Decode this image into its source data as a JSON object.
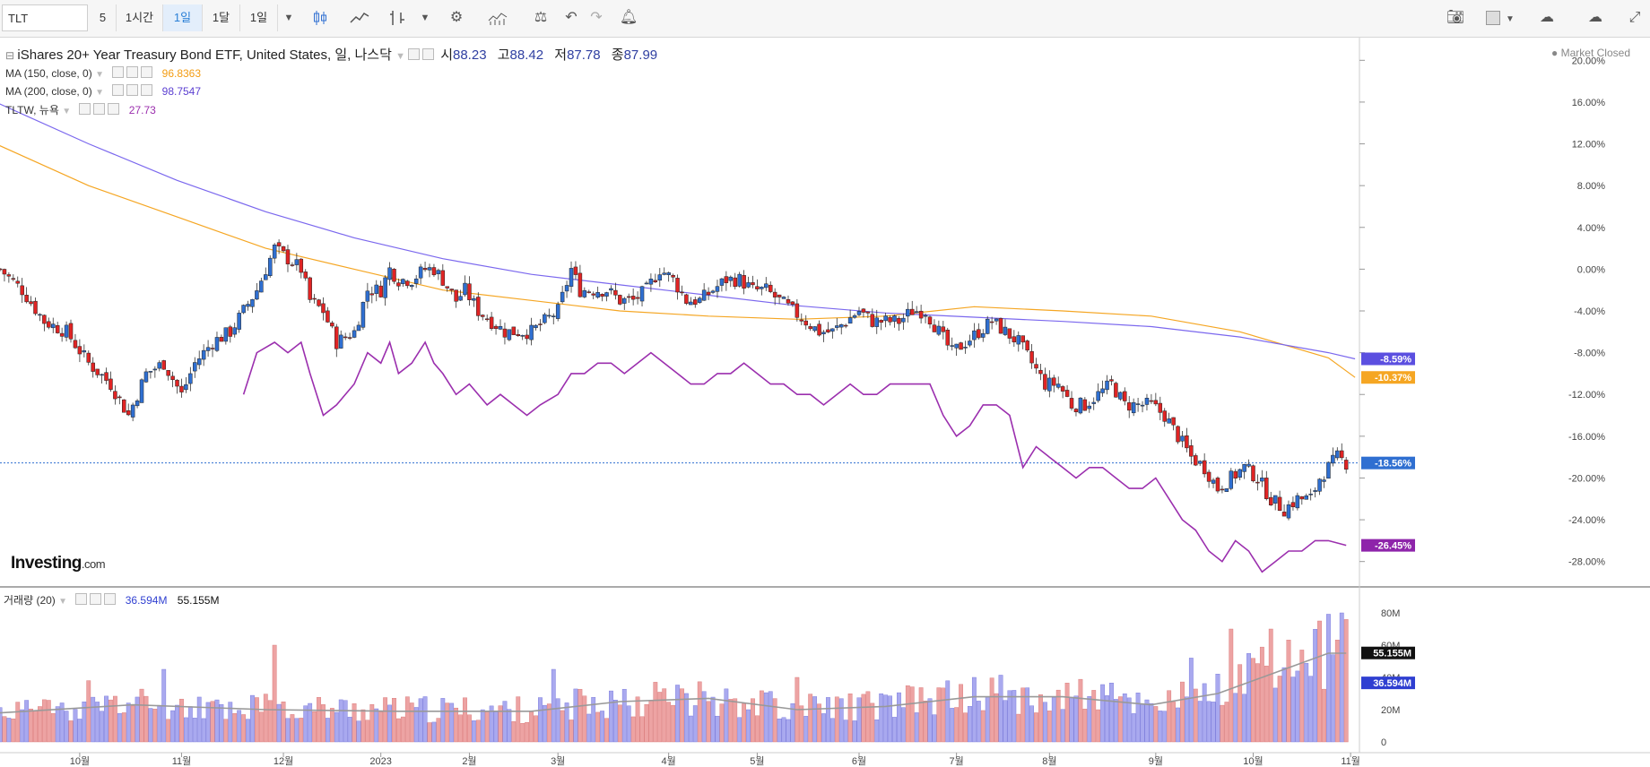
{
  "toolbar": {
    "symbol": "TLT",
    "intervals": [
      "5",
      "1시간",
      "1일",
      "1달",
      "1일"
    ],
    "active_interval": 2,
    "icons": [
      "candle-chart-icon",
      "line-chart-icon",
      "bar-chart-icon",
      "dropdown-icon",
      "settings-gear-icon",
      "indicators-icon",
      "compare-scale-icon",
      "undo-icon",
      "redo-icon",
      "alert-bell-icon",
      "camera-icon",
      "color-box-icon",
      "dropdown-icon",
      "cloud-download-icon",
      "cloud-upload-icon",
      "fullscreen-icon"
    ]
  },
  "header": {
    "title": "iShares 20+ Year Treasury Bond ETF, United States, 일, 나스닥",
    "open_label": "시",
    "open": "88.23",
    "high_label": "고",
    "high": "88.42",
    "low_label": "저",
    "low": "87.78",
    "close_label": "종",
    "close": "87.99",
    "status": "● Market Closed"
  },
  "legends": [
    {
      "label": "MA (150, close, 0)",
      "value": "96.8363",
      "color": "#f5a623"
    },
    {
      "label": "MA (200, close, 0)",
      "value": "98.7547",
      "color": "#7b4fe0"
    },
    {
      "label": "TLTW, 뉴욕",
      "value": "27.73",
      "color": "#9b2fae"
    }
  ],
  "volume_legend": {
    "label": "거래량 (20)",
    "value1": "36.594M",
    "value2": "55.155M"
  },
  "logo": {
    "main": "Investing",
    "suffix": ".com"
  },
  "colors": {
    "up": "#2f6fd1",
    "down": "#e02424",
    "ma150": "#f5a623",
    "ma200": "#7b68ee",
    "tltw": "#9b2fae",
    "vol_up": "#a9a9ef",
    "vol_down": "#eda3a3",
    "vol_ma": "#999999",
    "grid": "#e6e6e6"
  },
  "chart_data": {
    "type": "candlestick",
    "y_axis": {
      "unit": "%",
      "min": -30,
      "max": 22,
      "ticks": [
        "20.00%",
        "16.00%",
        "12.00%",
        "8.00%",
        "4.00%",
        "0.00%",
        "-4.00%",
        "-8.00%",
        "-12.00%",
        "-16.00%",
        "-20.00%",
        "-24.00%",
        "-28.00%"
      ],
      "tick_values": [
        20,
        16,
        12,
        8,
        4,
        0,
        -4,
        -8,
        -12,
        -16,
        -20,
        -24,
        -28
      ]
    },
    "x_axis": {
      "labels": [
        "10월",
        "11월",
        "12월",
        "2023",
        "2월",
        "3월",
        "4월",
        "5월",
        "6월",
        "7월",
        "8월",
        "9월",
        "10월",
        "11월"
      ],
      "label_days": [
        18,
        41,
        64,
        86,
        106,
        126,
        151,
        171,
        194,
        216,
        237,
        261,
        283,
        305
      ]
    },
    "price_path": [
      [
        0,
        0
      ],
      [
        5,
        -2
      ],
      [
        10,
        -5
      ],
      [
        15,
        -6
      ],
      [
        20,
        -9
      ],
      [
        25,
        -11
      ],
      [
        29,
        -14
      ],
      [
        33,
        -10
      ],
      [
        37,
        -9
      ],
      [
        41,
        -12
      ],
      [
        44,
        -9
      ],
      [
        48,
        -7
      ],
      [
        52,
        -6
      ],
      [
        55,
        -4
      ],
      [
        58,
        -2
      ],
      [
        62,
        2
      ],
      [
        65,
        1
      ],
      [
        68,
        0
      ],
      [
        70,
        -3
      ],
      [
        73,
        -4
      ],
      [
        76,
        -7
      ],
      [
        80,
        -6
      ],
      [
        83,
        -2
      ],
      [
        86,
        -2
      ],
      [
        88,
        0
      ],
      [
        90,
        -1
      ],
      [
        93,
        -1
      ],
      [
        96,
        0
      ],
      [
        98,
        0
      ],
      [
        100,
        -1
      ],
      [
        103,
        -3
      ],
      [
        105,
        -2
      ],
      [
        108,
        -4
      ],
      [
        111,
        -5
      ],
      [
        114,
        -6
      ],
      [
        117,
        -6
      ],
      [
        120,
        -6
      ],
      [
        123,
        -5
      ],
      [
        126,
        -4
      ],
      [
        129,
        0
      ],
      [
        131,
        -2
      ],
      [
        134,
        -2
      ],
      [
        137,
        -2
      ],
      [
        140,
        -3
      ],
      [
        143,
        -3
      ],
      [
        146,
        -2
      ],
      [
        149,
        0
      ],
      [
        152,
        -1
      ],
      [
        155,
        -3
      ],
      [
        158,
        -3
      ],
      [
        161,
        -2
      ],
      [
        164,
        -1
      ],
      [
        167,
        -1
      ],
      [
        170,
        -2
      ],
      [
        173,
        -2
      ],
      [
        176,
        -3
      ],
      [
        179,
        -4
      ],
      [
        182,
        -5
      ],
      [
        185,
        -6
      ],
      [
        188,
        -6
      ],
      [
        191,
        -5
      ],
      [
        194,
        -4
      ],
      [
        197,
        -5
      ],
      [
        200,
        -5
      ],
      [
        203,
        -5
      ],
      [
        206,
        -4
      ],
      [
        209,
        -4
      ],
      [
        212,
        -6
      ],
      [
        215,
        -8
      ],
      [
        218,
        -7
      ],
      [
        221,
        -6
      ],
      [
        224,
        -5
      ],
      [
        227,
        -6
      ],
      [
        230,
        -7
      ],
      [
        233,
        -9
      ],
      [
        236,
        -11
      ],
      [
        239,
        -11
      ],
      [
        242,
        -13
      ],
      [
        245,
        -13
      ],
      [
        248,
        -12
      ],
      [
        251,
        -11
      ],
      [
        254,
        -13
      ],
      [
        257,
        -13
      ],
      [
        260,
        -13
      ],
      [
        263,
        -14
      ],
      [
        266,
        -16
      ],
      [
        269,
        -18
      ],
      [
        272,
        -19
      ],
      [
        275,
        -21
      ],
      [
        278,
        -20
      ],
      [
        281,
        -19
      ],
      [
        284,
        -20
      ],
      [
        287,
        -22
      ],
      [
        290,
        -23
      ],
      [
        293,
        -22
      ],
      [
        296,
        -22
      ],
      [
        298,
        -20
      ],
      [
        300,
        -19
      ],
      [
        302,
        -18
      ],
      [
        304,
        -18.56
      ]
    ],
    "ma150": [
      [
        -1,
        12
      ],
      [
        20,
        8
      ],
      [
        40,
        5
      ],
      [
        60,
        2
      ],
      [
        80,
        0
      ],
      [
        100,
        -2
      ],
      [
        120,
        -3
      ],
      [
        140,
        -4
      ],
      [
        160,
        -4.5
      ],
      [
        180,
        -4.8
      ],
      [
        200,
        -4.5
      ],
      [
        220,
        -3.6
      ],
      [
        240,
        -4
      ],
      [
        260,
        -4.5
      ],
      [
        280,
        -6
      ],
      [
        300,
        -8.5
      ],
      [
        306,
        -10.37
      ]
    ],
    "ma200": [
      [
        -1,
        16
      ],
      [
        20,
        12
      ],
      [
        40,
        8.5
      ],
      [
        60,
        5.5
      ],
      [
        80,
        3
      ],
      [
        100,
        1
      ],
      [
        120,
        -0.5
      ],
      [
        140,
        -1.5
      ],
      [
        160,
        -2.5
      ],
      [
        180,
        -3.5
      ],
      [
        200,
        -4.2
      ],
      [
        220,
        -4.6
      ],
      [
        240,
        -5
      ],
      [
        260,
        -5.5
      ],
      [
        280,
        -6.5
      ],
      [
        300,
        -8
      ],
      [
        306,
        -8.59
      ]
    ],
    "tltw": [
      [
        55,
        -12
      ],
      [
        58,
        -8
      ],
      [
        62,
        -7
      ],
      [
        65,
        -8
      ],
      [
        68,
        -7
      ],
      [
        70,
        -10
      ],
      [
        73,
        -14
      ],
      [
        76,
        -13
      ],
      [
        80,
        -11
      ],
      [
        83,
        -8
      ],
      [
        86,
        -9
      ],
      [
        88,
        -7
      ],
      [
        90,
        -10
      ],
      [
        93,
        -9
      ],
      [
        96,
        -7
      ],
      [
        98,
        -9
      ],
      [
        100,
        -10
      ],
      [
        103,
        -12
      ],
      [
        106,
        -11
      ],
      [
        110,
        -13
      ],
      [
        113,
        -12
      ],
      [
        116,
        -13
      ],
      [
        119,
        -14
      ],
      [
        122,
        -13
      ],
      [
        126,
        -12
      ],
      [
        129,
        -10
      ],
      [
        132,
        -10
      ],
      [
        135,
        -9
      ],
      [
        138,
        -9
      ],
      [
        141,
        -10
      ],
      [
        144,
        -9
      ],
      [
        147,
        -8
      ],
      [
        150,
        -9
      ],
      [
        153,
        -10
      ],
      [
        156,
        -11
      ],
      [
        159,
        -11
      ],
      [
        162,
        -10
      ],
      [
        165,
        -10
      ],
      [
        168,
        -9
      ],
      [
        171,
        -10
      ],
      [
        174,
        -11
      ],
      [
        177,
        -11
      ],
      [
        180,
        -12
      ],
      [
        183,
        -12
      ],
      [
        186,
        -13
      ],
      [
        189,
        -12
      ],
      [
        192,
        -11
      ],
      [
        195,
        -12
      ],
      [
        198,
        -12
      ],
      [
        201,
        -11
      ],
      [
        204,
        -11
      ],
      [
        207,
        -11
      ],
      [
        210,
        -11
      ],
      [
        213,
        -14
      ],
      [
        216,
        -16
      ],
      [
        219,
        -15
      ],
      [
        222,
        -13
      ],
      [
        225,
        -13
      ],
      [
        228,
        -14
      ],
      [
        231,
        -19
      ],
      [
        234,
        -17
      ],
      [
        237,
        -18
      ],
      [
        240,
        -19
      ],
      [
        243,
        -20
      ],
      [
        246,
        -19
      ],
      [
        249,
        -19
      ],
      [
        252,
        -20
      ],
      [
        255,
        -21
      ],
      [
        258,
        -21
      ],
      [
        261,
        -20
      ],
      [
        264,
        -22
      ],
      [
        267,
        -24
      ],
      [
        270,
        -25
      ],
      [
        273,
        -27
      ],
      [
        276,
        -28
      ],
      [
        279,
        -26
      ],
      [
        282,
        -27
      ],
      [
        285,
        -29
      ],
      [
        288,
        -28
      ],
      [
        291,
        -27
      ],
      [
        294,
        -27
      ],
      [
        297,
        -26
      ],
      [
        300,
        -26
      ],
      [
        304,
        -26.45
      ]
    ],
    "price_label": "-18.56%",
    "axis_badges": [
      {
        "text": "-8.59%",
        "value": -8.59,
        "color": "#5b4fe0"
      },
      {
        "text": "-10.37%",
        "value": -10.37,
        "color": "#f5a623"
      },
      {
        "text": "-18.56%",
        "value": -18.56,
        "color": "#2f6fd1"
      },
      {
        "text": "-26.45%",
        "value": -26.45,
        "color": "#8e24aa"
      }
    ],
    "volume": {
      "y_ticks": [
        "80M",
        "60M",
        "40M",
        "20M",
        "0"
      ],
      "y_tick_values": [
        80,
        60,
        40,
        20,
        0
      ],
      "y_max": 90,
      "badges": [
        {
          "text": "55.155M",
          "value": 55.155,
          "color": "#111111"
        },
        {
          "text": "36.594M",
          "value": 36.594,
          "color": "#2f3fd1"
        }
      ],
      "ma_path": [
        [
          0,
          18
        ],
        [
          30,
          23
        ],
        [
          60,
          20
        ],
        [
          90,
          19
        ],
        [
          120,
          19
        ],
        [
          140,
          25
        ],
        [
          160,
          27
        ],
        [
          180,
          20
        ],
        [
          200,
          22
        ],
        [
          220,
          28
        ],
        [
          240,
          28
        ],
        [
          260,
          23
        ],
        [
          275,
          30
        ],
        [
          290,
          45
        ],
        [
          300,
          55
        ],
        [
          304,
          55
        ]
      ],
      "spikes": [
        [
          5,
          20
        ],
        [
          20,
          38
        ],
        [
          37,
          45
        ],
        [
          62,
          60
        ],
        [
          125,
          45
        ],
        [
          180,
          40
        ],
        [
          220,
          40
        ],
        [
          247,
          32
        ],
        [
          269,
          52
        ],
        [
          278,
          70
        ],
        [
          287,
          70
        ],
        [
          298,
          75
        ],
        [
          305,
          88
        ],
        [
          303,
          80
        ]
      ]
    }
  }
}
